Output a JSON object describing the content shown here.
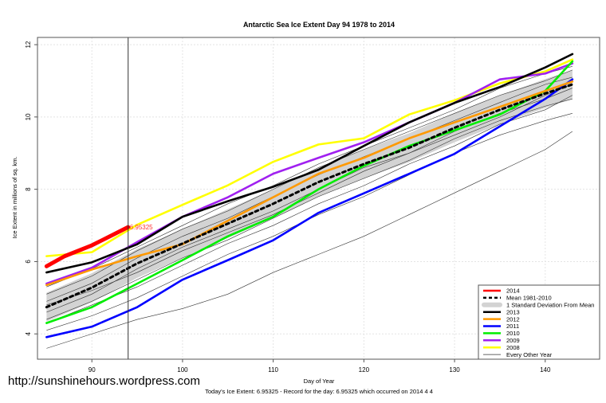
{
  "chart_data": {
    "type": "line",
    "title": "Antarctic Sea Ice Extent Day 94 1978 to 2014",
    "xlabel": "Day of Year",
    "ylabel": "Ice Extent in millions of sq. km.",
    "subtitle": "Today's Ice Extent: 6.95325  - Record for the day: 6.95325 which occurred on 2014 4 4",
    "xlim": [
      84,
      146
    ],
    "ylim": [
      3.3,
      12.2
    ],
    "xticks": [
      90,
      100,
      110,
      120,
      130,
      140
    ],
    "yticks": [
      4,
      6,
      8,
      10,
      12
    ],
    "grid": true,
    "legend_position": "bottom-right",
    "marker_day": 94,
    "marker_label": "6.95325",
    "x": [
      85,
      90,
      95,
      100,
      105,
      110,
      115,
      120,
      125,
      130,
      135,
      140,
      143
    ],
    "series": [
      {
        "name": "2014",
        "color": "#ff0000",
        "width": 5,
        "x": [
          85,
          87,
          90,
          92,
          94
        ],
        "values": [
          5.87,
          6.15,
          6.45,
          6.7,
          6.95325
        ]
      },
      {
        "name": "Mean 1981-2010",
        "color": "#000000",
        "dash": true,
        "values": [
          4.74,
          5.28,
          5.95,
          6.5,
          7.05,
          7.6,
          8.2,
          8.7,
          9.15,
          9.7,
          10.2,
          10.65,
          10.9
        ]
      },
      {
        "name": "2013",
        "color": "#000000",
        "values": [
          5.7,
          5.98,
          6.48,
          7.24,
          7.67,
          8.07,
          8.54,
          9.2,
          9.85,
          10.39,
          10.83,
          11.37,
          11.74
        ]
      },
      {
        "name": "2012",
        "color": "#ff9900",
        "values": [
          5.35,
          5.78,
          6.15,
          6.48,
          7.13,
          7.78,
          8.43,
          8.87,
          9.41,
          9.85,
          10.28,
          10.72,
          10.98
        ]
      },
      {
        "name": "2011",
        "color": "#0000ff",
        "values": [
          3.91,
          4.2,
          4.74,
          5.5,
          6.04,
          6.59,
          7.35,
          7.89,
          8.43,
          8.98,
          9.74,
          10.5,
          11.04
        ]
      },
      {
        "name": "2010",
        "color": "#00ee00",
        "values": [
          4.3,
          4.74,
          5.39,
          6.04,
          6.7,
          7.24,
          8.0,
          8.65,
          9.2,
          9.63,
          10.07,
          10.72,
          11.54
        ]
      },
      {
        "name": "2009",
        "color": "#a020f0",
        "values": [
          5.39,
          5.83,
          6.54,
          7.24,
          7.78,
          8.43,
          8.87,
          9.3,
          9.85,
          10.39,
          11.04,
          11.2,
          11.48
        ]
      },
      {
        "name": "2008",
        "color": "#ffff00",
        "values": [
          6.15,
          6.26,
          7.02,
          7.57,
          8.11,
          8.76,
          9.24,
          9.41,
          10.07,
          10.46,
          10.93,
          11.26,
          11.59
        ]
      }
    ],
    "std_band": {
      "name": "1 Standard Deviation From Mean",
      "color": "#d3d3d3",
      "half_width": 0.4
    },
    "other_years": {
      "name": "Every Other Year",
      "color": "#333333",
      "series": [
        [
          3.6,
          4.0,
          4.4,
          4.7,
          5.1,
          5.7,
          6.2,
          6.7,
          7.3,
          7.9,
          8.5,
          9.1,
          9.6
        ],
        [
          4.1,
          4.5,
          5.0,
          5.6,
          6.2,
          6.7,
          7.3,
          7.8,
          8.4,
          9.0,
          9.5,
          9.9,
          10.1
        ],
        [
          4.4,
          4.9,
          5.5,
          6.1,
          6.6,
          7.2,
          7.8,
          8.3,
          8.8,
          9.4,
          9.9,
          10.3,
          10.5
        ],
        [
          4.6,
          5.1,
          5.8,
          6.4,
          6.9,
          7.4,
          8.0,
          8.6,
          9.0,
          9.6,
          10.1,
          10.5,
          10.8
        ],
        [
          4.9,
          5.4,
          6.1,
          6.7,
          7.2,
          7.8,
          8.4,
          8.9,
          9.4,
          9.9,
          10.4,
          10.9,
          11.1
        ],
        [
          5.1,
          5.6,
          6.3,
          6.9,
          7.4,
          8.0,
          8.6,
          9.1,
          9.6,
          10.1,
          10.6,
          11.0,
          11.3
        ],
        [
          5.3,
          5.8,
          6.4,
          7.0,
          7.6,
          8.1,
          8.7,
          9.2,
          9.7,
          10.2,
          10.8,
          11.2,
          11.4
        ],
        [
          4.3,
          4.8,
          5.3,
          5.9,
          6.5,
          7.0,
          7.6,
          8.1,
          8.7,
          9.2,
          9.8,
          10.2,
          10.6
        ],
        [
          4.8,
          5.2,
          5.7,
          6.3,
          6.8,
          7.3,
          7.9,
          8.5,
          9.0,
          9.5,
          10.0,
          10.6,
          10.9
        ]
      ]
    }
  },
  "watermark": "http://sunshinehours.wordpress.com"
}
